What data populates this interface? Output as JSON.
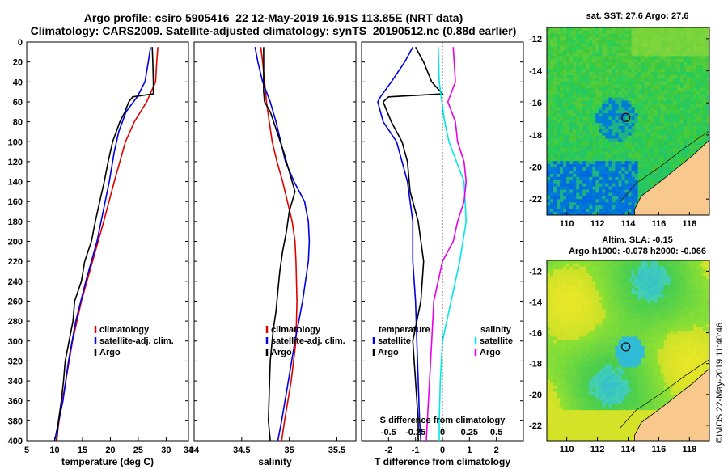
{
  "header": {
    "line1": "Argo profile: csiro 5905416_22 12-May-2019 16.91S 113.85E (NRT data)",
    "line2": "Climatology: CARS2009. Satellite-adjusted climatology: synTS_20190512.nc (0.88d earlier)"
  },
  "colors": {
    "climatology": "#e00000",
    "satellite": "#0000e0",
    "argo": "#000000",
    "s_sat": "#00e8e8",
    "s_argo": "#e800e8",
    "land": "#f8c88c",
    "contour": "#000000"
  },
  "chart_data": [
    {
      "type": "line",
      "id": "temperature",
      "xlabel": "temperature (deg C)",
      "ylabel": "",
      "xlim": [
        5,
        34
      ],
      "ylim": [
        400,
        0
      ],
      "xticks": [
        "5",
        "10",
        "15",
        "20",
        "25",
        "30",
        "34"
      ],
      "yticks": [
        "0",
        "20",
        "40",
        "60",
        "80",
        "100",
        "120",
        "140",
        "160",
        "180",
        "200",
        "220",
        "240",
        "260",
        "280",
        "300",
        "320",
        "340",
        "360",
        "380",
        "400"
      ],
      "legend": [
        "climatology",
        "satellite-adj. clim.",
        "Argo"
      ],
      "series": [
        {
          "name": "climatology",
          "color": "#e00000",
          "depth": [
            5,
            20,
            40,
            60,
            80,
            100,
            140,
            180,
            220,
            260,
            300,
            340,
            380,
            400
          ],
          "values": [
            28.5,
            28.3,
            28.1,
            26.5,
            24.3,
            22.7,
            20.7,
            18.8,
            16.8,
            14.8,
            13.2,
            12.0,
            10.8,
            10.3
          ]
        },
        {
          "name": "satellite-adj. clim.",
          "color": "#0000e0",
          "depth": [
            5,
            20,
            40,
            55,
            70,
            90,
            110,
            140,
            170,
            200,
            240,
            280,
            320,
            360,
            400
          ],
          "values": [
            27.2,
            26.8,
            26.2,
            24.8,
            22.8,
            21.5,
            20.7,
            19.8,
            18.7,
            17.6,
            15.6,
            13.8,
            12.5,
            11.5,
            10.0
          ]
        },
        {
          "name": "Argo",
          "color": "#000000",
          "depth": [
            5,
            20,
            40,
            52,
            55,
            60,
            70,
            80,
            100,
            120,
            140,
            160,
            180,
            200,
            220,
            240,
            260,
            280,
            300,
            320,
            340,
            360,
            380,
            400
          ],
          "values": [
            27.5,
            27.6,
            27.7,
            27.7,
            24.0,
            23.3,
            22.6,
            21.7,
            20.4,
            19.6,
            18.9,
            18.1,
            17.3,
            16.6,
            15.4,
            14.8,
            13.6,
            13.3,
            12.6,
            11.9,
            11.6,
            11.2,
            10.7,
            10.4
          ]
        }
      ]
    },
    {
      "type": "line",
      "id": "salinity",
      "xlabel": "salinity",
      "ylabel": "",
      "xlim": [
        34.0,
        35.7
      ],
      "ylim": [
        400,
        0
      ],
      "xticks": [
        "34",
        "34.5",
        "35",
        "35.5"
      ],
      "legend": [
        "climatology",
        "satellite-adj. clim.",
        "Argo"
      ],
      "series": [
        {
          "name": "climatology",
          "color": "#e00000",
          "depth": [
            5,
            20,
            40,
            60,
            80,
            100,
            120,
            140,
            160,
            180,
            200,
            220,
            260,
            300,
            340,
            380,
            400
          ],
          "values": [
            34.7,
            34.72,
            34.74,
            34.76,
            34.79,
            34.82,
            34.87,
            34.93,
            34.98,
            35.03,
            35.06,
            35.07,
            35.08,
            35.07,
            35.02,
            34.95,
            34.92
          ]
        },
        {
          "name": "satellite-adj. clim.",
          "color": "#0000e0",
          "depth": [
            5,
            20,
            40,
            60,
            80,
            100,
            120,
            140,
            160,
            180,
            200,
            220,
            260,
            300,
            340,
            380,
            400
          ],
          "values": [
            34.64,
            34.67,
            34.72,
            34.8,
            34.86,
            34.91,
            34.96,
            35.05,
            35.16,
            35.2,
            35.21,
            35.2,
            35.14,
            35.06,
            34.99,
            34.92,
            34.88
          ]
        },
        {
          "name": "Argo",
          "color": "#000000",
          "depth": [
            5,
            30,
            50,
            60,
            70,
            90,
            110,
            130,
            150,
            170,
            190,
            210,
            230,
            250,
            270,
            290,
            320,
            350,
            380,
            400
          ],
          "values": [
            34.73,
            34.73,
            34.73,
            34.74,
            34.8,
            34.87,
            34.94,
            35.0,
            35.06,
            35.0,
            34.97,
            34.93,
            34.9,
            34.88,
            34.86,
            34.83,
            34.8,
            34.79,
            34.78,
            34.8
          ]
        }
      ]
    },
    {
      "type": "line",
      "id": "difference",
      "xlabel": "T difference from climatology",
      "top_xlabel": "S difference from climatology",
      "xlim": [
        -3,
        3
      ],
      "ylim": [
        400,
        0
      ],
      "xticks": [
        "-2",
        "-1",
        "0",
        "1",
        "2"
      ],
      "top_xticks": [
        "-0.5",
        "-0.25",
        "0",
        "0.25",
        "0.5"
      ],
      "legend_temperature_title": "temperature",
      "legend_salinity_title": "salinity",
      "legend": [
        "satellite",
        "Argo",
        "satellite",
        "Argo"
      ],
      "series": [
        {
          "name": "T satellite",
          "color": "#0000e0",
          "depth": [
            5,
            20,
            40,
            55,
            60,
            80,
            100,
            140,
            180,
            220,
            260,
            300,
            340,
            380,
            400
          ],
          "values": [
            -1.1,
            -1.4,
            -1.9,
            -2.3,
            -2.4,
            -2.2,
            -1.7,
            -1.3,
            -1.1,
            -1.1,
            -1.0,
            -0.95,
            -0.9,
            -0.85,
            -0.8
          ]
        },
        {
          "name": "T Argo",
          "color": "#000000",
          "depth": [
            5,
            20,
            40,
            52,
            55,
            60,
            80,
            100,
            120,
            150,
            180,
            220,
            260,
            300,
            340,
            380,
            400
          ],
          "values": [
            -1.0,
            -0.7,
            -0.4,
            0.0,
            -2.0,
            -2.2,
            -1.9,
            -1.5,
            -1.3,
            -1.2,
            -0.9,
            -0.7,
            -0.8,
            -1.1,
            -1.0,
            -0.9,
            -0.9
          ]
        },
        {
          "name": "S satellite",
          "color": "#00e8e8",
          "depth": [
            5,
            40,
            80,
            100,
            140,
            180,
            220,
            260,
            300,
            340,
            380,
            400
          ],
          "values": [
            -0.04,
            -0.03,
            0.02,
            0.06,
            0.2,
            0.22,
            0.16,
            0.08,
            0.0,
            -0.02,
            -0.03,
            -0.03
          ]
        },
        {
          "name": "S Argo",
          "color": "#e800e8",
          "depth": [
            5,
            40,
            60,
            80,
            100,
            120,
            140,
            160,
            180,
            200,
            220,
            260,
            300,
            340,
            380,
            400
          ],
          "values": [
            0.1,
            0.12,
            0.05,
            0.12,
            0.14,
            0.2,
            0.22,
            0.2,
            0.14,
            0.1,
            0.0,
            -0.08,
            -0.1,
            -0.12,
            -0.14,
            -0.15
          ]
        }
      ]
    },
    {
      "type": "heatmap",
      "id": "sst-map",
      "title": "sat. SST: 27.6 Argo: 27.6",
      "xlim": [
        108.7,
        119.3
      ],
      "ylim": [
        -23,
        -11.3
      ],
      "xticks": [
        "110",
        "112",
        "114",
        "116",
        "118"
      ],
      "yticks": [
        "-12",
        "-14",
        "-16",
        "-18",
        "-20",
        "-22"
      ],
      "profile_location": [
        113.85,
        -16.91
      ]
    },
    {
      "type": "heatmap",
      "id": "sla-map",
      "title_line1": "Altim. SLA: -0.15",
      "title_line2": "Argo h1000: -0.078 h2000: -0.066",
      "xlim": [
        108.7,
        119.3
      ],
      "ylim": [
        -23,
        -11.3
      ],
      "xticks": [
        "110",
        "112",
        "114",
        "116",
        "118"
      ],
      "yticks": [
        "-12",
        "-14",
        "-16",
        "-18",
        "-20",
        "-22"
      ],
      "profile_location": [
        113.85,
        -16.91
      ]
    }
  ],
  "stamp": "©IMOS 22-May-2019 11:40:46"
}
